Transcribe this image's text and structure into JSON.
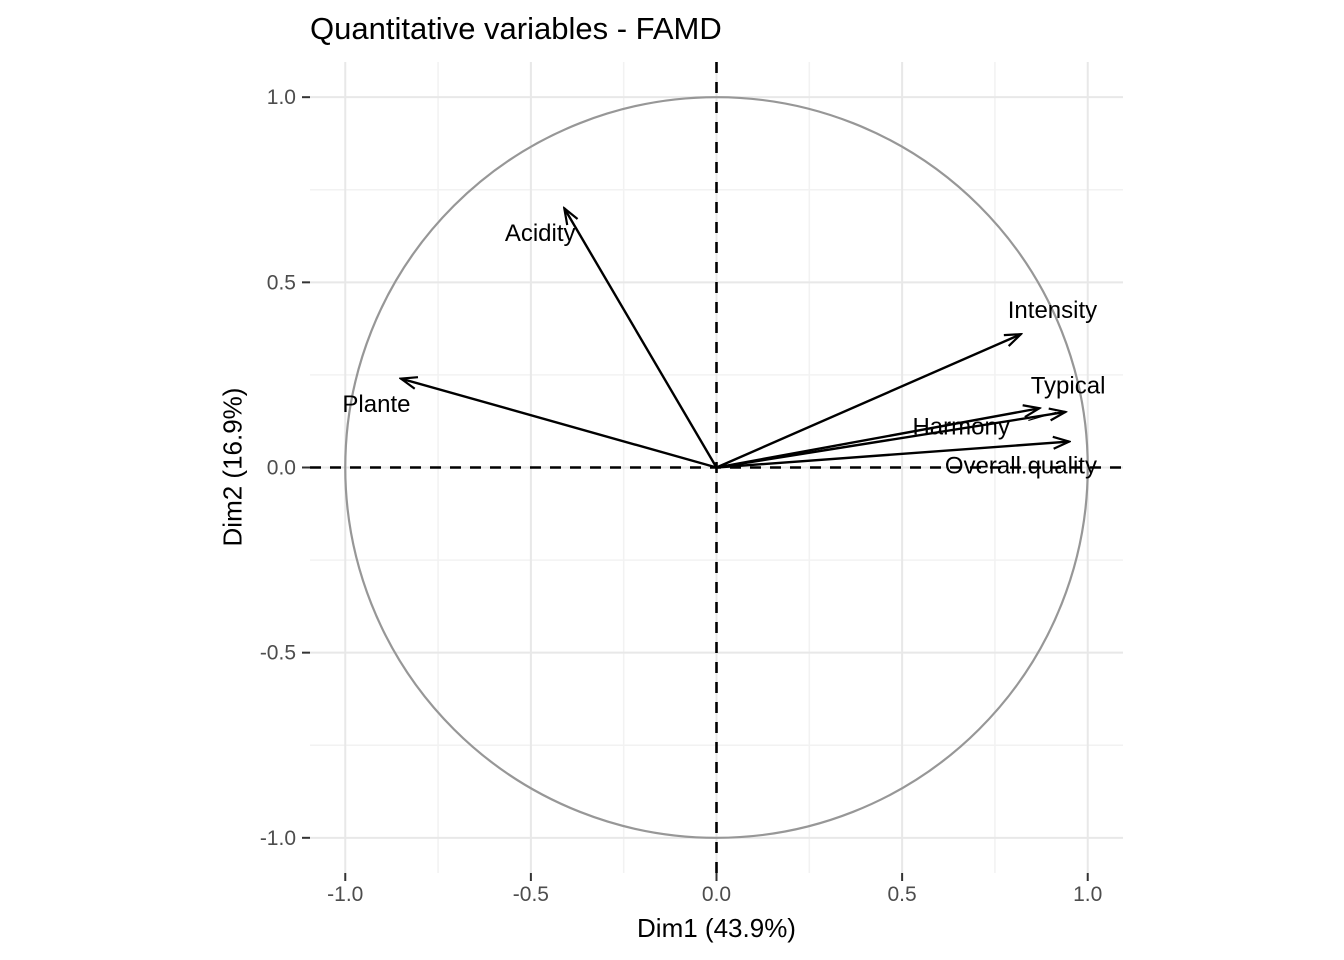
{
  "chart": {
    "title": "Quantitative variables - FAMD",
    "x_axis": {
      "label": "Dim1 (43.9%)",
      "tick_labels": [
        "-1.0",
        "-0.5",
        "0.0",
        "0.5",
        "1.0"
      ],
      "tick_values": [
        -1.0,
        -0.5,
        0.0,
        0.5,
        1.0
      ]
    },
    "y_axis": {
      "label": "Dim2 (16.9%)",
      "tick_labels": [
        "1.0",
        "0.5",
        "0.0",
        "-0.5",
        "-1.0"
      ],
      "tick_values": [
        1.0,
        0.5,
        0.0,
        -0.5,
        -1.0
      ]
    }
  },
  "chart_data": {
    "type": "scatter",
    "subtype": "correlation-circle-arrows",
    "title": "Quantitative variables - FAMD",
    "xlabel": "Dim1 (43.9%)",
    "ylabel": "Dim2 (16.9%)",
    "xlim": [
      -1.095,
      1.095
    ],
    "ylim": [
      -1.095,
      1.095
    ],
    "grid": {
      "on": true,
      "major": [
        -1.0,
        -0.5,
        0.0,
        0.5,
        1.0
      ],
      "minor": [
        -0.75,
        -0.25,
        0.25,
        0.75
      ]
    },
    "unit_circle": true,
    "zero_lines_dashed": true,
    "variables": [
      {
        "name": "Acidity",
        "x": -0.41,
        "y": 0.7,
        "label_x": -0.475,
        "label_y": 0.633
      },
      {
        "name": "Plante",
        "x": -0.85,
        "y": 0.24,
        "label_x": -0.916,
        "label_y": 0.172
      },
      {
        "name": "Intensity",
        "x": 0.82,
        "y": 0.36,
        "label_x": 0.905,
        "label_y": 0.425
      },
      {
        "name": "Typical",
        "x": 0.94,
        "y": 0.15,
        "label_x": 0.947,
        "label_y": 0.222
      },
      {
        "name": "Harmony",
        "x": 0.87,
        "y": 0.16,
        "label_x": 0.659,
        "label_y": 0.111
      },
      {
        "name": "Overall.quality",
        "x": 0.95,
        "y": 0.07,
        "label_x": 0.82,
        "label_y": 0.005
      }
    ],
    "label_leader_segments": [
      {
        "x1": 0.84,
        "y1": 0.127,
        "x2": 0.915,
        "y2": 0.149
      }
    ]
  },
  "colors": {
    "background": "#ffffff",
    "arrow": "#000000",
    "circle": "#979797",
    "grid_major": "#e8e8e8",
    "grid_minor": "#f2f2f2",
    "zero_line": "#000000",
    "tick": "#333333",
    "tick_label": "#4d4d4d",
    "text": "#000000"
  }
}
